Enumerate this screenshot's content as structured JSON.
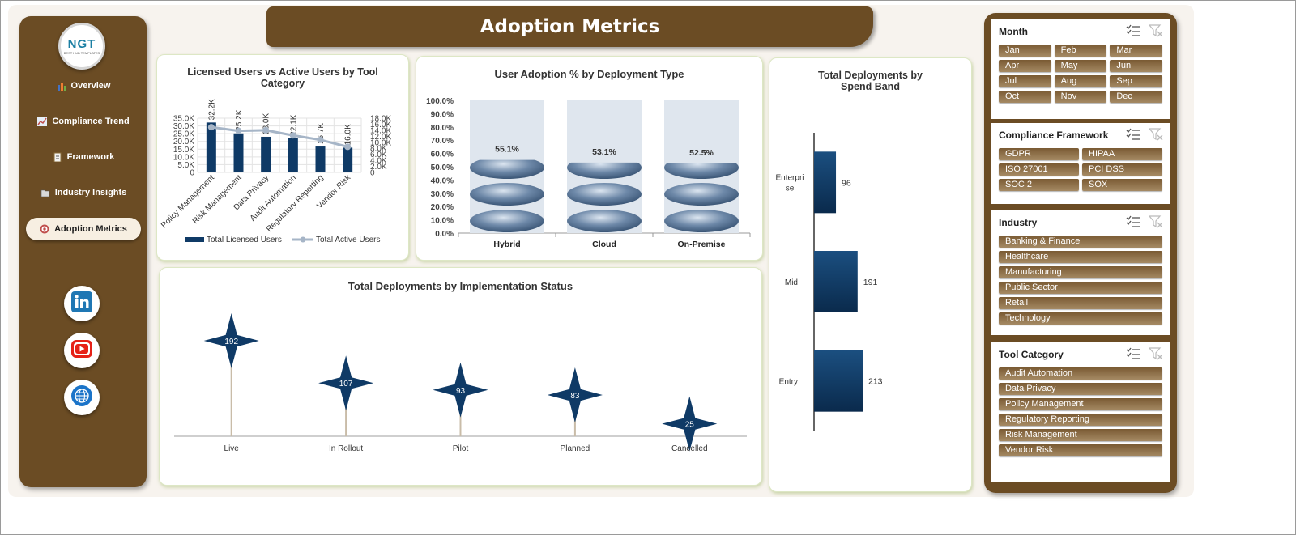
{
  "header": {
    "title": "Adoption Metrics"
  },
  "logo": {
    "text": "NGT",
    "subtext": "BEST HUB TEMPLATES"
  },
  "nav": [
    {
      "label": "Overview",
      "icon": "bar-chart-icon"
    },
    {
      "label": "Compliance Trend",
      "icon": "trend-icon"
    },
    {
      "label": "Framework",
      "icon": "clipboard-icon"
    },
    {
      "label": "Industry Insights",
      "icon": "folder-icon"
    },
    {
      "label": "Adoption Metrics",
      "icon": "target-icon",
      "active": true
    }
  ],
  "social": [
    "linkedin-icon",
    "youtube-icon",
    "globe-icon"
  ],
  "colors": {
    "brown": "#6b4c24",
    "navy": "#0f3a66",
    "cream": "#f7efe2"
  },
  "charts": {
    "licensed": {
      "title": "Licensed Users vs Active Users by Tool Category",
      "legend": [
        "Total Licensed Users",
        "Total Active Users"
      ],
      "y_left_ticks": [
        "35.0K",
        "30.0K",
        "25.0K",
        "20.0K",
        "15.0K",
        "10.0K",
        "5.0K",
        "0"
      ],
      "y_right_ticks": [
        "18.0K",
        "16.0K",
        "14.0K",
        "12.0K",
        "10.0K",
        "8.0K",
        "6.0K",
        "4.0K",
        "2.0K",
        "0"
      ]
    },
    "adoption": {
      "title": "User Adoption % by Deployment Type"
    },
    "status": {
      "title": "Total Deployments by Implementation Status"
    },
    "spend": {
      "title": "Total Deployments by Spend Band"
    }
  },
  "chart_data": [
    {
      "type": "bar",
      "title": "Licensed Users vs Active Users by Tool Category",
      "categories": [
        "Policy Management",
        "Risk Management",
        "Data Privacy",
        "Audit Automation",
        "Regulatory Reporting",
        "Vendor Risk"
      ],
      "series": [
        {
          "name": "Total Licensed Users",
          "type": "bar",
          "axis": "left",
          "values": [
            32200,
            25200,
            23000,
            22100,
            16700,
            16000
          ],
          "labels": [
            "32.2K",
            "25.2K",
            "23.0K",
            "22.1K",
            "16.7K",
            "16.0K"
          ]
        },
        {
          "name": "Total Active Users",
          "type": "line",
          "axis": "right",
          "values": [
            15000,
            13800,
            14000,
            12300,
            10800,
            8500
          ]
        }
      ],
      "ylim": [
        0,
        35000
      ],
      "ylim_right": [
        0,
        18000
      ],
      "legend": "bottom"
    },
    {
      "type": "bar",
      "title": "User Adoption % by Deployment Type",
      "categories": [
        "Hybrid",
        "Cloud",
        "On-Premise"
      ],
      "values": [
        55.1,
        53.1,
        52.5
      ],
      "labels": [
        "55.1%",
        "53.1%",
        "52.5%"
      ],
      "ylim": [
        0,
        100
      ],
      "y_ticks": [
        "100.0%",
        "90.0%",
        "80.0%",
        "70.0%",
        "60.0%",
        "50.0%",
        "40.0%",
        "30.0%",
        "20.0%",
        "10.0%",
        "0.0%"
      ]
    },
    {
      "type": "line",
      "title": "Total Deployments by Implementation Status",
      "categories": [
        "Live",
        "In Rollout",
        "Pilot",
        "Planned",
        "Cancelled"
      ],
      "values": [
        192,
        107,
        93,
        83,
        25
      ],
      "ylim": [
        0,
        192
      ]
    },
    {
      "type": "bar",
      "orientation": "horizontal",
      "title": "Total Deployments by Spend Band",
      "categories": [
        "Enterprise",
        "Mid",
        "Entry"
      ],
      "values": [
        96,
        191,
        213
      ]
    }
  ],
  "slicers": [
    {
      "title": "Month",
      "columns": 3,
      "items": [
        "Jan",
        "Feb",
        "Mar",
        "Apr",
        "May",
        "Jun",
        "Jul",
        "Aug",
        "Sep",
        "Oct",
        "Nov",
        "Dec"
      ]
    },
    {
      "title": "Compliance Framework",
      "columns": 2,
      "items": [
        "GDPR",
        "HIPAA",
        "ISO 27001",
        "PCI DSS",
        "SOC 2",
        "SOX"
      ]
    },
    {
      "title": "Industry",
      "columns": 1,
      "items": [
        "Banking & Finance",
        "Healthcare",
        "Manufacturing",
        "Public Sector",
        "Retail",
        "Technology"
      ]
    },
    {
      "title": "Tool Category",
      "columns": 1,
      "items": [
        "Audit Automation",
        "Data Privacy",
        "Policy Management",
        "Regulatory Reporting",
        "Risk Management",
        "Vendor Risk"
      ]
    }
  ]
}
